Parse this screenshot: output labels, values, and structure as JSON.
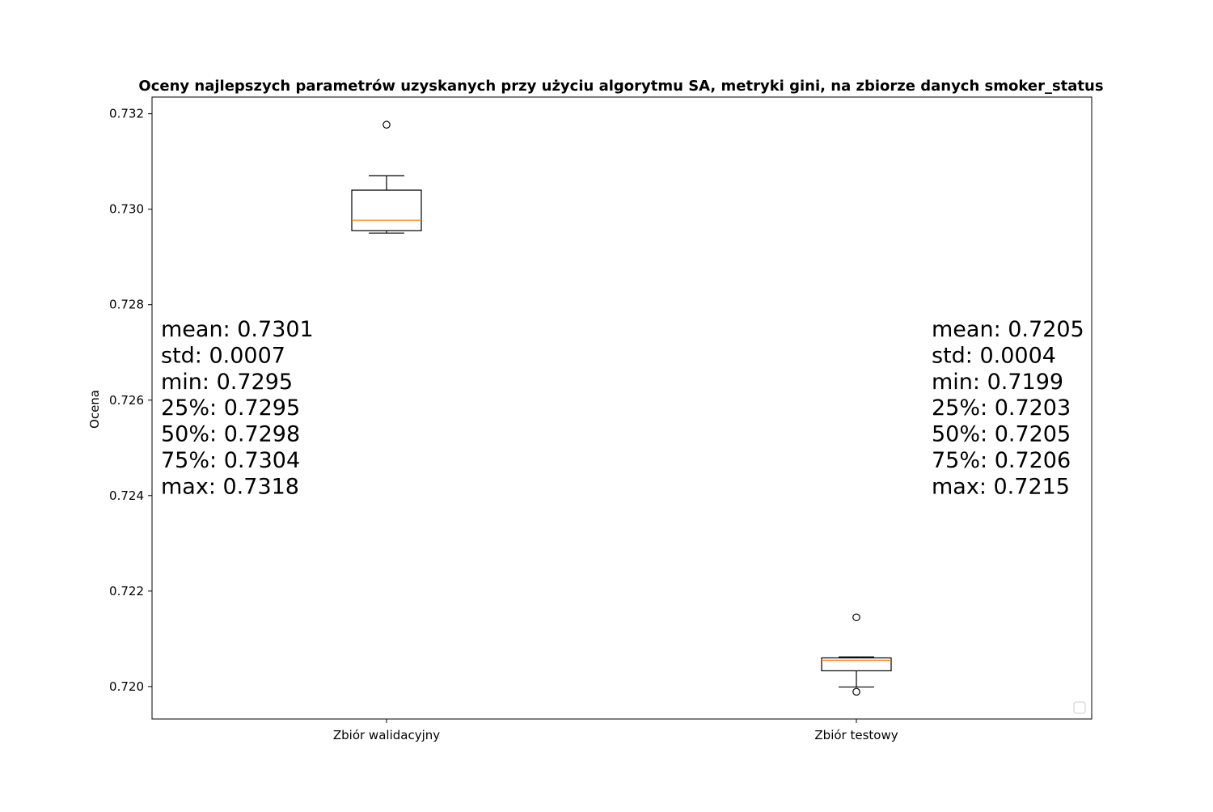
{
  "chart_data": {
    "type": "box",
    "title": "Oceny najlepszych parametrów uzyskanych przy użyciu algorytmu SA, metryki gini, na zbiorze danych smoker_status",
    "xlabel": "",
    "ylabel": "Ocena",
    "ylim": [
      0.71932,
      0.73235
    ],
    "yticks": [
      "0.720",
      "0.722",
      "0.724",
      "0.726",
      "0.728",
      "0.730",
      "0.732"
    ],
    "ytick_values": [
      0.72,
      0.722,
      0.724,
      0.726,
      0.728,
      0.73,
      0.732
    ],
    "categories": [
      "Zbiór walidacyjny",
      "Zbiór testowy"
    ],
    "grid": false,
    "legend": "lower right (empty)",
    "colors": {
      "box": "#000000",
      "median": "#ff7f0e",
      "background": "#ffffff"
    },
    "boxes": [
      {
        "category": "Zbiór walidacyjny",
        "whisker_low": 0.7295,
        "q1": 0.72955,
        "median": 0.72977,
        "q3": 0.7304,
        "whisker_high": 0.7307,
        "outliers": [
          0.73177
        ],
        "stats": [
          "mean: 0.7301",
          "std: 0.0007",
          "min: 0.7295",
          "25%: 0.7295",
          "50%: 0.7298",
          "75%: 0.7304",
          "max: 0.7318"
        ]
      },
      {
        "category": "Zbiór testowy",
        "whisker_low": 0.71999,
        "q1": 0.72033,
        "median": 0.72055,
        "q3": 0.7206,
        "whisker_high": 0.72062,
        "outliers": [
          0.72145,
          0.71989
        ],
        "stats": [
          "mean: 0.7205",
          "std: 0.0004",
          "min: 0.7199",
          "25%: 0.7203",
          "50%: 0.7205",
          "75%: 0.7206",
          "max: 0.7215"
        ]
      }
    ]
  }
}
